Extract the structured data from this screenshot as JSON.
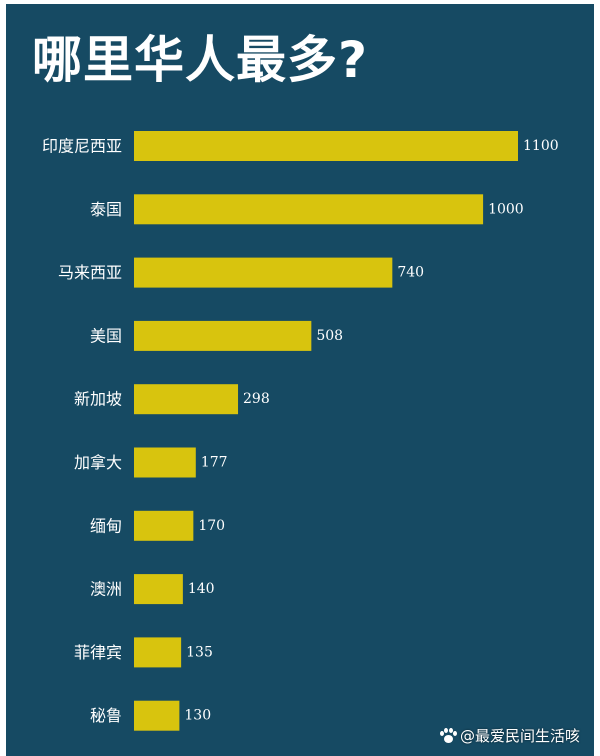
{
  "chart_data": {
    "type": "bar",
    "orientation": "horizontal",
    "title": "哪里华人最多?",
    "categories": [
      "印度尼西亚",
      "泰国",
      "马来西亚",
      "美国",
      "新加坡",
      "加拿大",
      "缅甸",
      "澳洲",
      "菲律宾",
      "秘鲁"
    ],
    "values": [
      1100,
      1000,
      740,
      508,
      298,
      177,
      170,
      140,
      135,
      130
    ],
    "value_labels": [
      "1100",
      "1000",
      "740",
      "508",
      "298",
      "177",
      "170",
      "140",
      "135",
      "130"
    ],
    "xlim": [
      0,
      1100
    ],
    "grid": false,
    "legend": "none",
    "bar_color": "#d8c40e",
    "background_color": "#164a63",
    "text_color": "#ffffff"
  },
  "watermark": {
    "icon": "paw-icon",
    "text": "@最爱民间生活咳"
  }
}
